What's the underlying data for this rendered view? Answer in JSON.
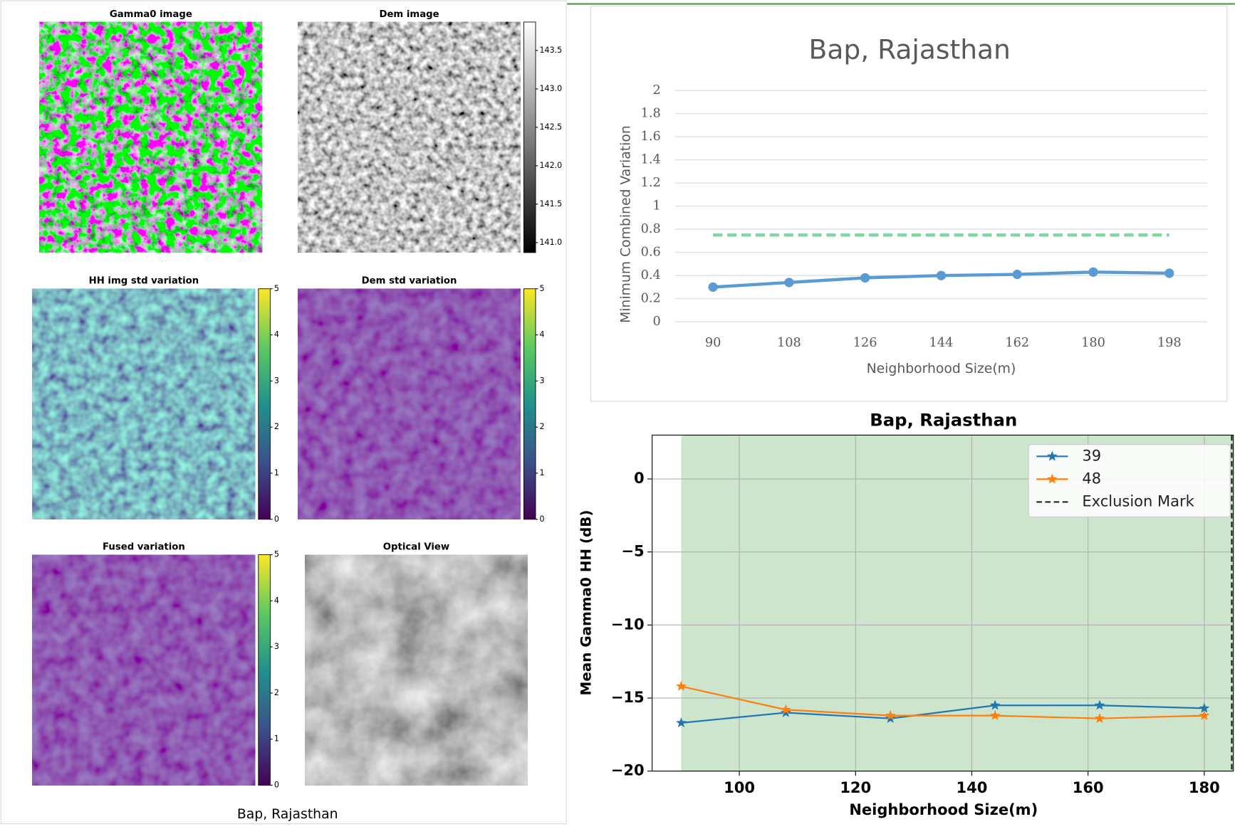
{
  "caption": "Bap, Rajasthan",
  "chart_data": [
    {
      "type": "image",
      "title": "Gamma0 image",
      "colormap": "gamma"
    },
    {
      "type": "image",
      "title": "Dem image",
      "colormap": "dem",
      "colorbar": {
        "colormap": "gray",
        "lim": [
          140.87,
          143.87
        ],
        "ticks": [
          {
            "value": 141.0,
            "label": "141.0"
          },
          {
            "value": 141.5,
            "label": "141.5"
          },
          {
            "value": 142.0,
            "label": "142.0"
          },
          {
            "value": 142.5,
            "label": "142.5"
          },
          {
            "value": 143.0,
            "label": "143.0"
          },
          {
            "value": 143.5,
            "label": "143.5"
          }
        ]
      }
    },
    {
      "type": "image",
      "title": "HH img std variation",
      "colormap": "hh",
      "colorbar": {
        "colormap": "viridis",
        "lim": [
          0,
          5
        ],
        "ticks": [
          0,
          1,
          2,
          3,
          4,
          5
        ]
      }
    },
    {
      "type": "image",
      "title": "Dem std variation",
      "colormap": "low",
      "colorbar": {
        "colormap": "viridis",
        "lim": [
          0,
          5
        ],
        "ticks": [
          0,
          1,
          2,
          3,
          4,
          5
        ]
      }
    },
    {
      "type": "image",
      "title": "Fused variation",
      "colormap": "low",
      "colorbar": {
        "colormap": "viridis",
        "lim": [
          0,
          5
        ],
        "ticks": [
          0,
          1,
          2,
          3,
          4,
          5
        ]
      }
    },
    {
      "type": "image",
      "title": "Optical View",
      "colormap": "optical"
    },
    {
      "type": "line",
      "title": "Bap, Rajasthan",
      "xlabel": "Neighborhood Size(m)",
      "ylabel": "Minimum Combined Variation",
      "categories": [
        90,
        108,
        126,
        144,
        162,
        180,
        198
      ],
      "series": [
        {
          "color": "#5b9bd5",
          "marker": "circle",
          "values": [
            0.3,
            0.34,
            0.38,
            0.4,
            0.41,
            0.43,
            0.42
          ]
        },
        {
          "color": "#7ed6a0",
          "dash": true,
          "values": [
            0.75,
            0.75,
            0.75,
            0.75,
            0.75,
            0.75,
            0.75
          ]
        }
      ],
      "ylim": [
        0,
        2
      ],
      "yticks": [
        0,
        0.2,
        0.4,
        0.6,
        0.8,
        1,
        1.2,
        1.4,
        1.6,
        1.8,
        2
      ],
      "grid": true
    },
    {
      "type": "line",
      "title": "Bap, Rajasthan",
      "xlabel": "Neighborhood Size(m)",
      "ylabel": "Mean Gamma0 HH (dB)",
      "x": [
        90,
        108,
        126,
        144,
        162,
        180
      ],
      "series": [
        {
          "name": "39",
          "color": "#1f77b4",
          "marker": "star",
          "values": [
            -16.7,
            -16.0,
            -16.4,
            -15.5,
            -15.5,
            -15.7
          ]
        },
        {
          "name": "48",
          "color": "#ff7f0e",
          "marker": "star",
          "values": [
            -14.2,
            -15.8,
            -16.2,
            -16.2,
            -16.4,
            -16.2
          ]
        }
      ],
      "exclusion_mark": {
        "name": "Exclusion  Mark",
        "x": 185,
        "color": "#222222"
      },
      "shade": {
        "x": [
          90,
          185
        ],
        "color": "#cde5cc"
      },
      "xlim": [
        85,
        185
      ],
      "ylim": [
        -20,
        3
      ],
      "xticks": [
        100,
        120,
        140,
        160,
        180
      ],
      "yticks": [
        0,
        {
          "value": -5,
          "label": "−5"
        },
        {
          "value": -10,
          "label": "−10"
        },
        {
          "value": -15,
          "label": "−15"
        },
        {
          "value": -20,
          "label": "−20"
        }
      ],
      "grid": true,
      "legend": "upper right"
    }
  ]
}
